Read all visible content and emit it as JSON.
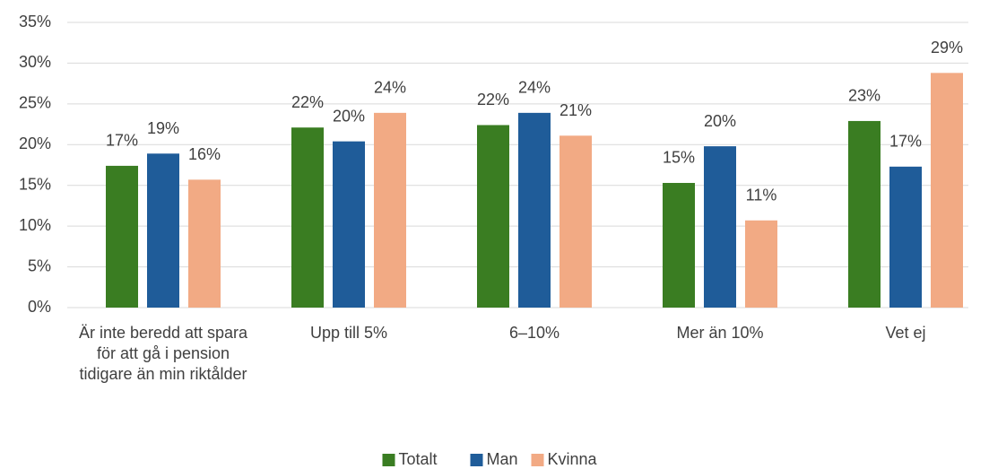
{
  "chart_data": {
    "type": "bar",
    "categories": [
      "Är inte beredd att spara för att gå i pension tidigare än min riktålder",
      "Upp till 5%",
      "6–10%",
      "Mer än 10%",
      "Vet ej"
    ],
    "series": [
      {
        "name": "Totalt",
        "color": "#3a7d22",
        "values": [
          17.4,
          22.1,
          22.4,
          15.3,
          22.9
        ],
        "value_labels": [
          "17%",
          "22%",
          "22%",
          "15%",
          "23%"
        ]
      },
      {
        "name": "Man",
        "color": "#1f5c99",
        "values": [
          18.9,
          20.4,
          23.9,
          19.8,
          17.3
        ],
        "value_labels": [
          "19%",
          "20%",
          "24%",
          "20%",
          "17%"
        ]
      },
      {
        "name": "Kvinna",
        "color": "#f2aa84",
        "values": [
          15.7,
          23.9,
          21.1,
          10.7,
          28.8
        ],
        "value_labels": [
          "16%",
          "24%",
          "21%",
          "11%",
          "29%"
        ]
      }
    ],
    "ylim": [
      0,
      35
    ],
    "yticks": [
      {
        "value": 0,
        "label": "0%"
      },
      {
        "value": 5,
        "label": "5%"
      },
      {
        "value": 10,
        "label": "10%"
      },
      {
        "value": 15,
        "label": "15%"
      },
      {
        "value": 20,
        "label": "20%"
      },
      {
        "value": 25,
        "label": "25%"
      },
      {
        "value": 30,
        "label": "30%"
      },
      {
        "value": 35,
        "label": "35%"
      }
    ],
    "grid": true,
    "legend": "bottom"
  }
}
